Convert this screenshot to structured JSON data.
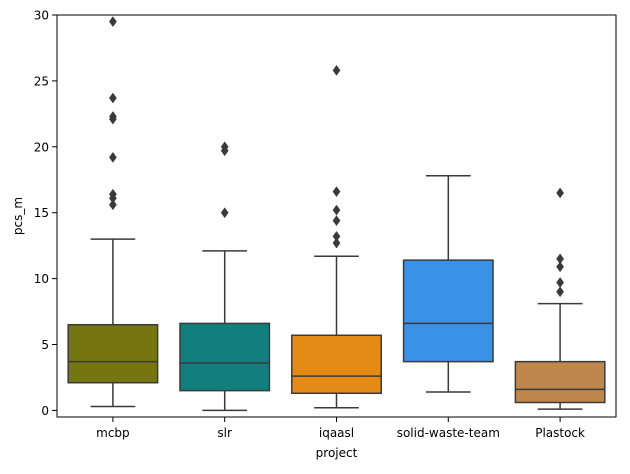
{
  "chart_data": {
    "type": "box",
    "title": "",
    "xlabel": "project",
    "ylabel": "pcs_m",
    "ylim": [
      -0.5,
      30
    ],
    "yticks": [
      0,
      5,
      10,
      15,
      20,
      25,
      30
    ],
    "categories": [
      "mcbp",
      "slr",
      "iqaasl",
      "solid-waste-team",
      "Plastock"
    ],
    "boxes": [
      {
        "name": "mcbp",
        "color": "#757511",
        "whisker_low": 0.3,
        "q1": 2.1,
        "median": 3.7,
        "q3": 6.5,
        "whisker_high": 13.0,
        "outliers": [
          15.6,
          16.1,
          16.4,
          19.2,
          22.1,
          22.3,
          23.7,
          29.5
        ]
      },
      {
        "name": "slr",
        "color": "#127f7f",
        "whisker_low": 0.0,
        "q1": 1.5,
        "median": 3.6,
        "q3": 6.6,
        "whisker_high": 12.1,
        "outliers": [
          15.0,
          19.7,
          20.0
        ]
      },
      {
        "name": "iqaasl",
        "color": "#e68a16",
        "whisker_low": 0.2,
        "q1": 1.3,
        "median": 2.6,
        "q3": 5.7,
        "whisker_high": 11.7,
        "outliers": [
          12.7,
          13.2,
          14.4,
          15.2,
          16.6,
          25.8
        ]
      },
      {
        "name": "solid-waste-team",
        "color": "#3a91e8",
        "whisker_low": 1.4,
        "q1": 3.7,
        "median": 6.6,
        "q3": 11.4,
        "whisker_high": 17.8,
        "outliers": []
      },
      {
        "name": "Plastock",
        "color": "#c0874d",
        "whisker_low": 0.1,
        "q1": 0.6,
        "median": 1.6,
        "q3": 3.7,
        "whisker_high": 8.1,
        "outliers": [
          9.0,
          9.7,
          10.9,
          11.5,
          16.5
        ]
      }
    ]
  }
}
